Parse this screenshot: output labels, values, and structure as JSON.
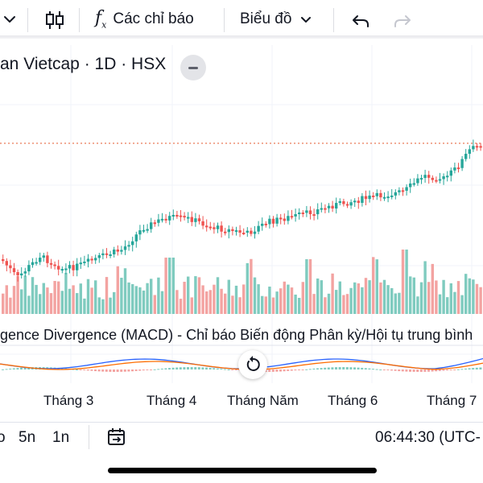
{
  "toolbar": {
    "chevron_left": "⌄",
    "indicators_label": "Các chỉ báo",
    "chart_type_label": "Biểu đồ",
    "chevron_down": "⌄"
  },
  "legend": {
    "text": "an Vietcap · 1D · HSX"
  },
  "macd": {
    "title": "gence Divergence (MACD) - Chỉ báo Biến động Phân kỳ/Hội tụ trung bình"
  },
  "time_axis": {
    "months": [
      "Tháng 3",
      "Tháng 4",
      "Tháng Năm",
      "Tháng 6",
      "Tháng 7"
    ]
  },
  "bottom_bar": {
    "range_partial": "o",
    "range_5y": "5n",
    "range_1y": "1n",
    "clock": "06:44:30 (UTC-"
  },
  "colors": {
    "up": "#26a69a",
    "down": "#ef5350",
    "vol_up": "#7fcbbf",
    "vol_down": "#f3a3a1",
    "price_line": "#e4572e",
    "macd_line": "#2962ff",
    "signal_line": "#ff6d00"
  },
  "icons": [
    "chevron-down-icon",
    "candlestick-icon",
    "fx-icon",
    "undo-icon",
    "redo-icon",
    "minus-icon",
    "reset-icon",
    "date-range-icon"
  ]
}
